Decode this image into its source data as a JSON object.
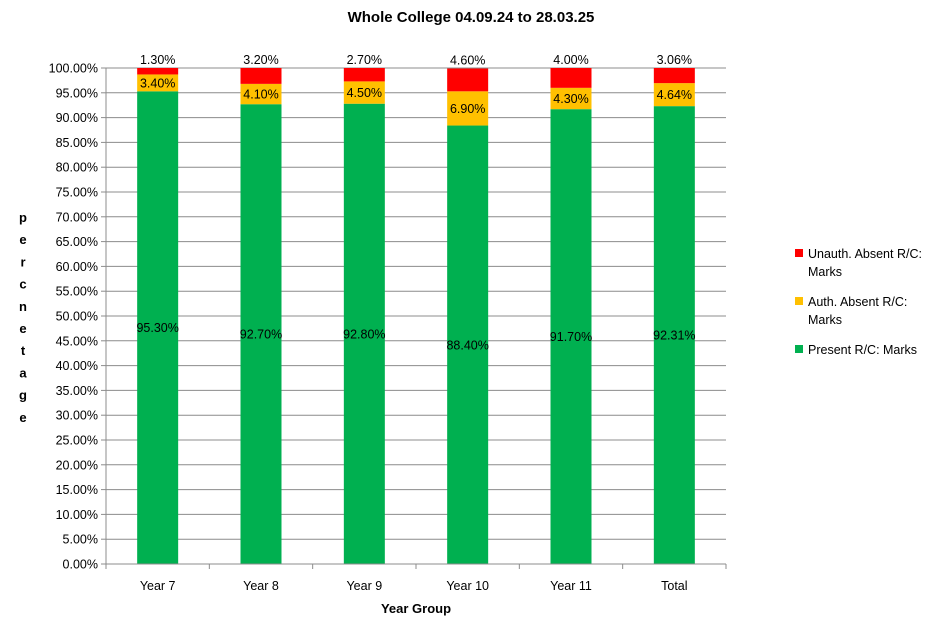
{
  "chart_data": {
    "type": "bar",
    "stacked": true,
    "title": "Whole College 04.09.24 to 28.03.25",
    "xlabel": "Year Group",
    "ylabel": "percnetage",
    "ylim": [
      0,
      100
    ],
    "yticks": [
      "0.00%",
      "5.00%",
      "10.00%",
      "15.00%",
      "20.00%",
      "25.00%",
      "30.00%",
      "35.00%",
      "40.00%",
      "45.00%",
      "50.00%",
      "55.00%",
      "60.00%",
      "65.00%",
      "70.00%",
      "75.00%",
      "80.00%",
      "85.00%",
      "90.00%",
      "95.00%",
      "100.00%"
    ],
    "grid": true,
    "legend_position": "right",
    "categories": [
      "Year 7",
      "Year 8",
      "Year 9",
      "Year 10",
      "Year 11",
      "Total"
    ],
    "series": [
      {
        "name": "Present R/C: Marks",
        "color": "#00b050",
        "values": [
          95.3,
          92.7,
          92.8,
          88.4,
          91.7,
          92.31
        ],
        "labels": [
          "95.30%",
          "92.70%",
          "92.80%",
          "88.40%",
          "91.70%",
          "92.31%"
        ]
      },
      {
        "name": "Auth. Absent R/C: Marks",
        "color": "#ffc000",
        "values": [
          3.4,
          4.1,
          4.5,
          6.9,
          4.3,
          4.64
        ],
        "labels": [
          "3.40%",
          "4.10%",
          "4.50%",
          "6.90%",
          "4.30%",
          "4.64%"
        ]
      },
      {
        "name": "Unauth. Absent R/C: Marks",
        "color": "#ff0000",
        "values": [
          1.3,
          3.2,
          2.7,
          4.6,
          4.0,
          3.06
        ],
        "labels": [
          "1.30%",
          "3.20%",
          "2.70%",
          "4.60%",
          "4.00%",
          "3.06%"
        ]
      }
    ],
    "legend_order": [
      2,
      1,
      0
    ]
  }
}
